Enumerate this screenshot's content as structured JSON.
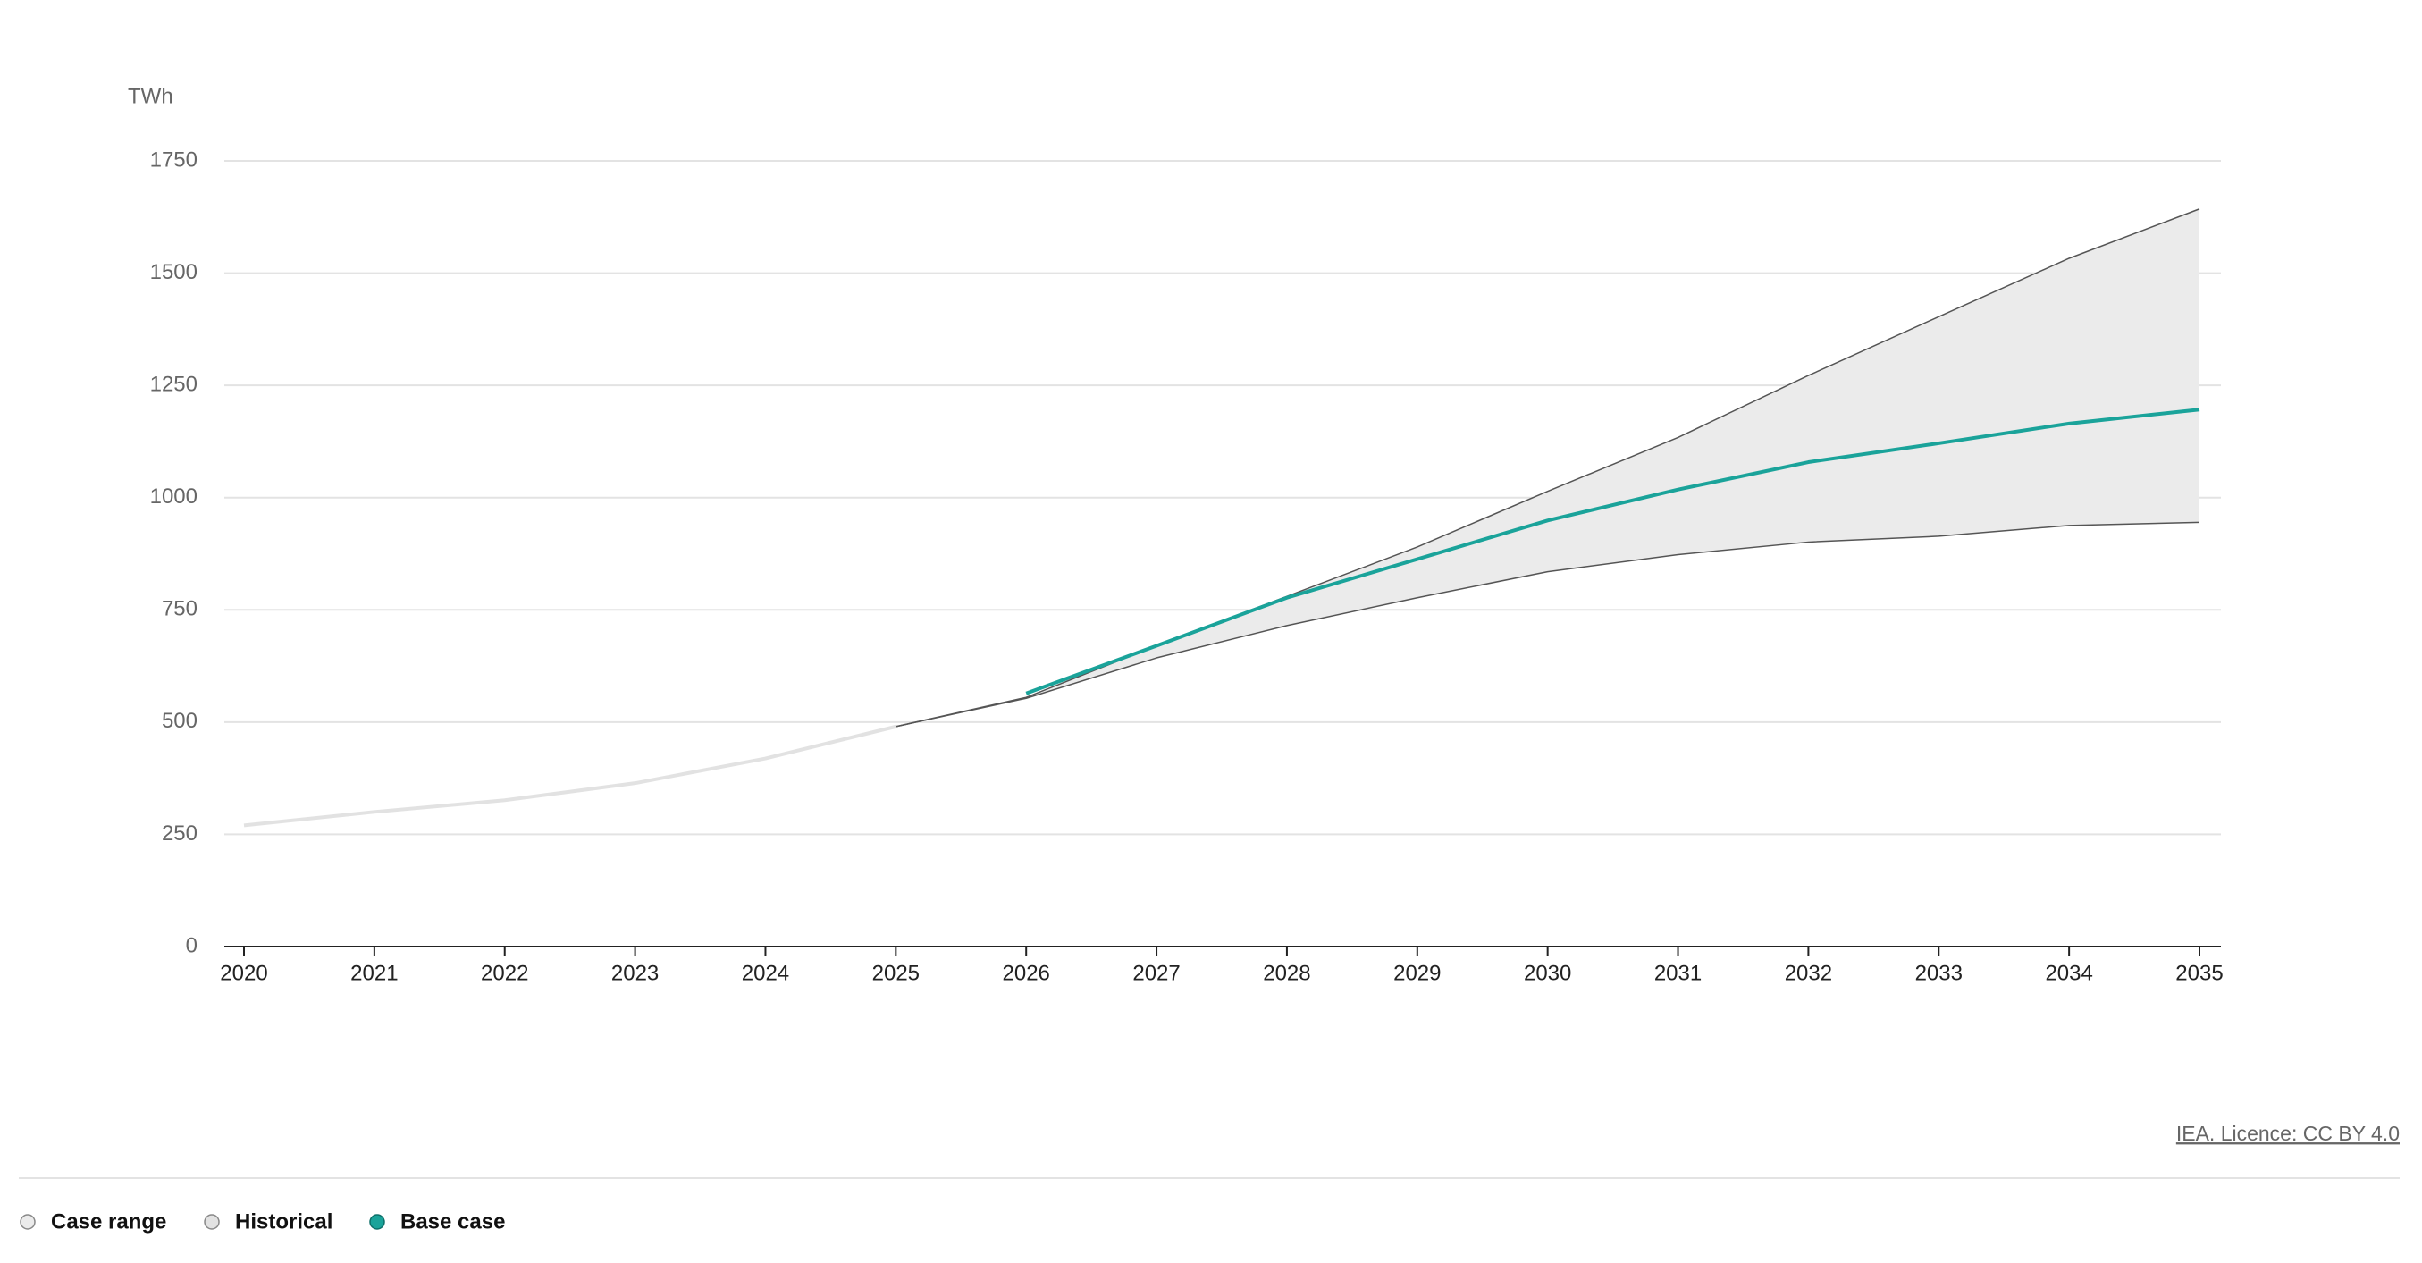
{
  "chart_data": {
    "type": "line",
    "y_label": "TWh",
    "source": "IEA. Licence: CC BY 4.0",
    "categories": [
      "2020",
      "2021",
      "2022",
      "2023",
      "2024",
      "2025",
      "2026",
      "2027",
      "2028",
      "2029",
      "2030",
      "2031",
      "2032",
      "2033",
      "2034",
      "2035"
    ],
    "ylim": [
      0,
      1750
    ],
    "yticks": [
      0,
      250,
      500,
      750,
      1000,
      1250,
      1500,
      1750
    ],
    "grid": true,
    "legend_position": "bottom-left",
    "range": {
      "name": "Case range",
      "color": "#ebebeb",
      "line_color": "#555555",
      "low": [
        null,
        null,
        null,
        null,
        null,
        490,
        553,
        643,
        715,
        777,
        835,
        873,
        901,
        914,
        938,
        945
      ],
      "high": [
        null,
        null,
        null,
        null,
        null,
        490,
        555,
        670,
        780,
        890,
        1014,
        1134,
        1272,
        1403,
        1533,
        1643
      ]
    },
    "series": [
      {
        "name": "Historical",
        "color": "#e2e2e2",
        "values": [
          270,
          300,
          326,
          364,
          419,
          490,
          null,
          null,
          null,
          null,
          null,
          null,
          null,
          null,
          null,
          null
        ]
      },
      {
        "name": "Base case",
        "color": "#1aa39a",
        "values": [
          null,
          null,
          null,
          null,
          null,
          null,
          564,
          670,
          777,
          863,
          949,
          1018,
          1079,
          1121,
          1165,
          1196
        ]
      }
    ]
  }
}
